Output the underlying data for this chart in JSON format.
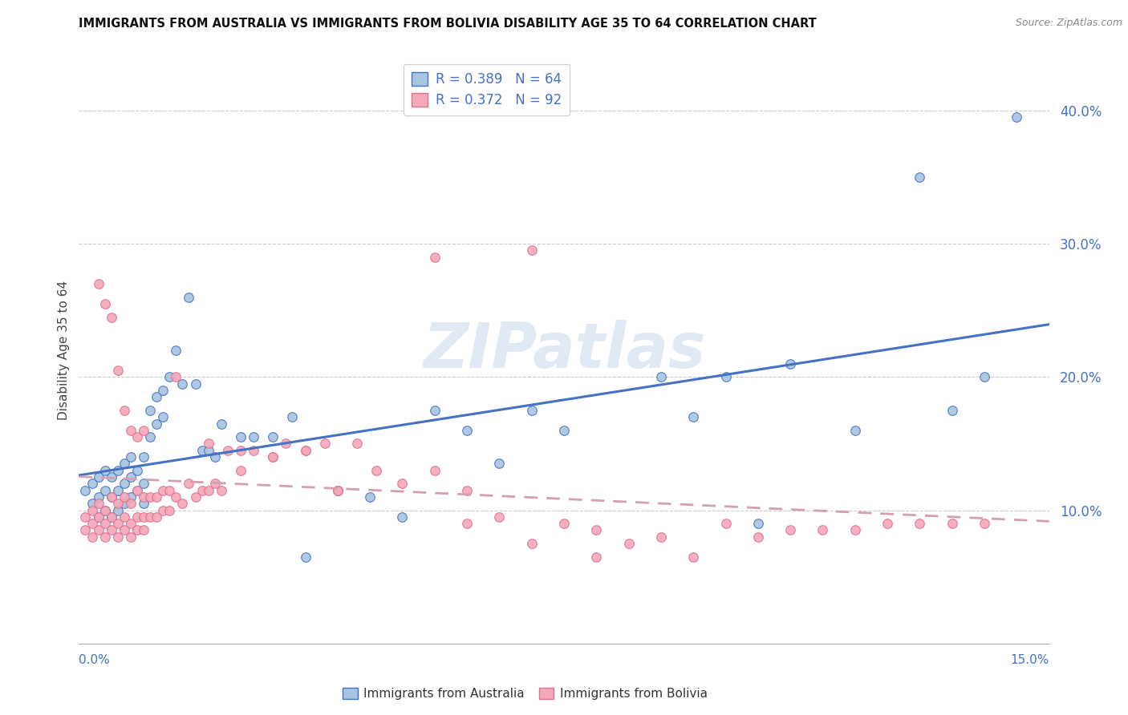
{
  "title": "IMMIGRANTS FROM AUSTRALIA VS IMMIGRANTS FROM BOLIVIA DISABILITY AGE 35 TO 64 CORRELATION CHART",
  "source": "Source: ZipAtlas.com",
  "xlabel_bottom_left": "0.0%",
  "xlabel_bottom_right": "15.0%",
  "ylabel": "Disability Age 35 to 64",
  "ytick_labels": [
    "10.0%",
    "20.0%",
    "30.0%",
    "40.0%"
  ],
  "ytick_values": [
    0.1,
    0.2,
    0.3,
    0.4
  ],
  "xlim": [
    0.0,
    0.15
  ],
  "ylim": [
    0.0,
    0.44
  ],
  "legend_r_aus": "R = 0.389",
  "legend_n_aus": "N = 64",
  "legend_r_bol": "R = 0.372",
  "legend_n_bol": "N = 92",
  "color_australia_fill": "#a8c4e0",
  "color_australia_edge": "#4472C4",
  "color_bolivia_fill": "#f4a8b8",
  "color_bolivia_edge": "#E07090",
  "color_line_aus": "#4472C4",
  "color_line_bol": "#d4a0b0",
  "watermark": "ZIPatlas",
  "aus_x": [
    0.001,
    0.002,
    0.002,
    0.003,
    0.003,
    0.003,
    0.004,
    0.004,
    0.004,
    0.005,
    0.005,
    0.005,
    0.006,
    0.006,
    0.006,
    0.007,
    0.007,
    0.007,
    0.008,
    0.008,
    0.008,
    0.009,
    0.009,
    0.01,
    0.01,
    0.01,
    0.011,
    0.011,
    0.012,
    0.012,
    0.013,
    0.013,
    0.014,
    0.015,
    0.016,
    0.017,
    0.018,
    0.019,
    0.02,
    0.021,
    0.022,
    0.025,
    0.027,
    0.03,
    0.033,
    0.035,
    0.04,
    0.045,
    0.05,
    0.055,
    0.06,
    0.065,
    0.07,
    0.075,
    0.09,
    0.095,
    0.1,
    0.105,
    0.11,
    0.12,
    0.13,
    0.135,
    0.14,
    0.145
  ],
  "aus_y": [
    0.115,
    0.105,
    0.12,
    0.095,
    0.11,
    0.125,
    0.1,
    0.115,
    0.13,
    0.095,
    0.11,
    0.125,
    0.1,
    0.115,
    0.13,
    0.105,
    0.12,
    0.135,
    0.11,
    0.125,
    0.14,
    0.115,
    0.13,
    0.105,
    0.12,
    0.14,
    0.175,
    0.155,
    0.165,
    0.185,
    0.19,
    0.17,
    0.2,
    0.22,
    0.195,
    0.26,
    0.195,
    0.145,
    0.145,
    0.14,
    0.165,
    0.155,
    0.155,
    0.155,
    0.17,
    0.065,
    0.115,
    0.11,
    0.095,
    0.175,
    0.16,
    0.135,
    0.175,
    0.16,
    0.2,
    0.17,
    0.2,
    0.09,
    0.21,
    0.16,
    0.35,
    0.175,
    0.2,
    0.395
  ],
  "bol_x": [
    0.001,
    0.001,
    0.002,
    0.002,
    0.002,
    0.003,
    0.003,
    0.003,
    0.004,
    0.004,
    0.004,
    0.005,
    0.005,
    0.005,
    0.006,
    0.006,
    0.006,
    0.007,
    0.007,
    0.007,
    0.008,
    0.008,
    0.008,
    0.009,
    0.009,
    0.009,
    0.01,
    0.01,
    0.01,
    0.011,
    0.011,
    0.012,
    0.012,
    0.013,
    0.013,
    0.014,
    0.014,
    0.015,
    0.016,
    0.017,
    0.018,
    0.019,
    0.02,
    0.021,
    0.022,
    0.023,
    0.025,
    0.027,
    0.03,
    0.032,
    0.035,
    0.038,
    0.04,
    0.043,
    0.046,
    0.05,
    0.055,
    0.06,
    0.065,
    0.07,
    0.075,
    0.08,
    0.085,
    0.09,
    0.095,
    0.1,
    0.105,
    0.11,
    0.115,
    0.12,
    0.125,
    0.13,
    0.135,
    0.14,
    0.003,
    0.004,
    0.005,
    0.006,
    0.007,
    0.008,
    0.009,
    0.01,
    0.015,
    0.02,
    0.025,
    0.03,
    0.035,
    0.04,
    0.06,
    0.08,
    0.055,
    0.07
  ],
  "bol_y": [
    0.085,
    0.095,
    0.08,
    0.09,
    0.1,
    0.085,
    0.095,
    0.105,
    0.08,
    0.09,
    0.1,
    0.085,
    0.095,
    0.11,
    0.08,
    0.09,
    0.105,
    0.085,
    0.095,
    0.11,
    0.08,
    0.09,
    0.105,
    0.085,
    0.095,
    0.115,
    0.085,
    0.095,
    0.11,
    0.095,
    0.11,
    0.095,
    0.11,
    0.1,
    0.115,
    0.1,
    0.115,
    0.11,
    0.105,
    0.12,
    0.11,
    0.115,
    0.115,
    0.12,
    0.115,
    0.145,
    0.13,
    0.145,
    0.14,
    0.15,
    0.145,
    0.15,
    0.115,
    0.15,
    0.13,
    0.12,
    0.13,
    0.09,
    0.095,
    0.075,
    0.09,
    0.065,
    0.075,
    0.08,
    0.065,
    0.09,
    0.08,
    0.085,
    0.085,
    0.085,
    0.09,
    0.09,
    0.09,
    0.09,
    0.27,
    0.255,
    0.245,
    0.205,
    0.175,
    0.16,
    0.155,
    0.16,
    0.2,
    0.15,
    0.145,
    0.14,
    0.145,
    0.115,
    0.115,
    0.085,
    0.29,
    0.295
  ]
}
